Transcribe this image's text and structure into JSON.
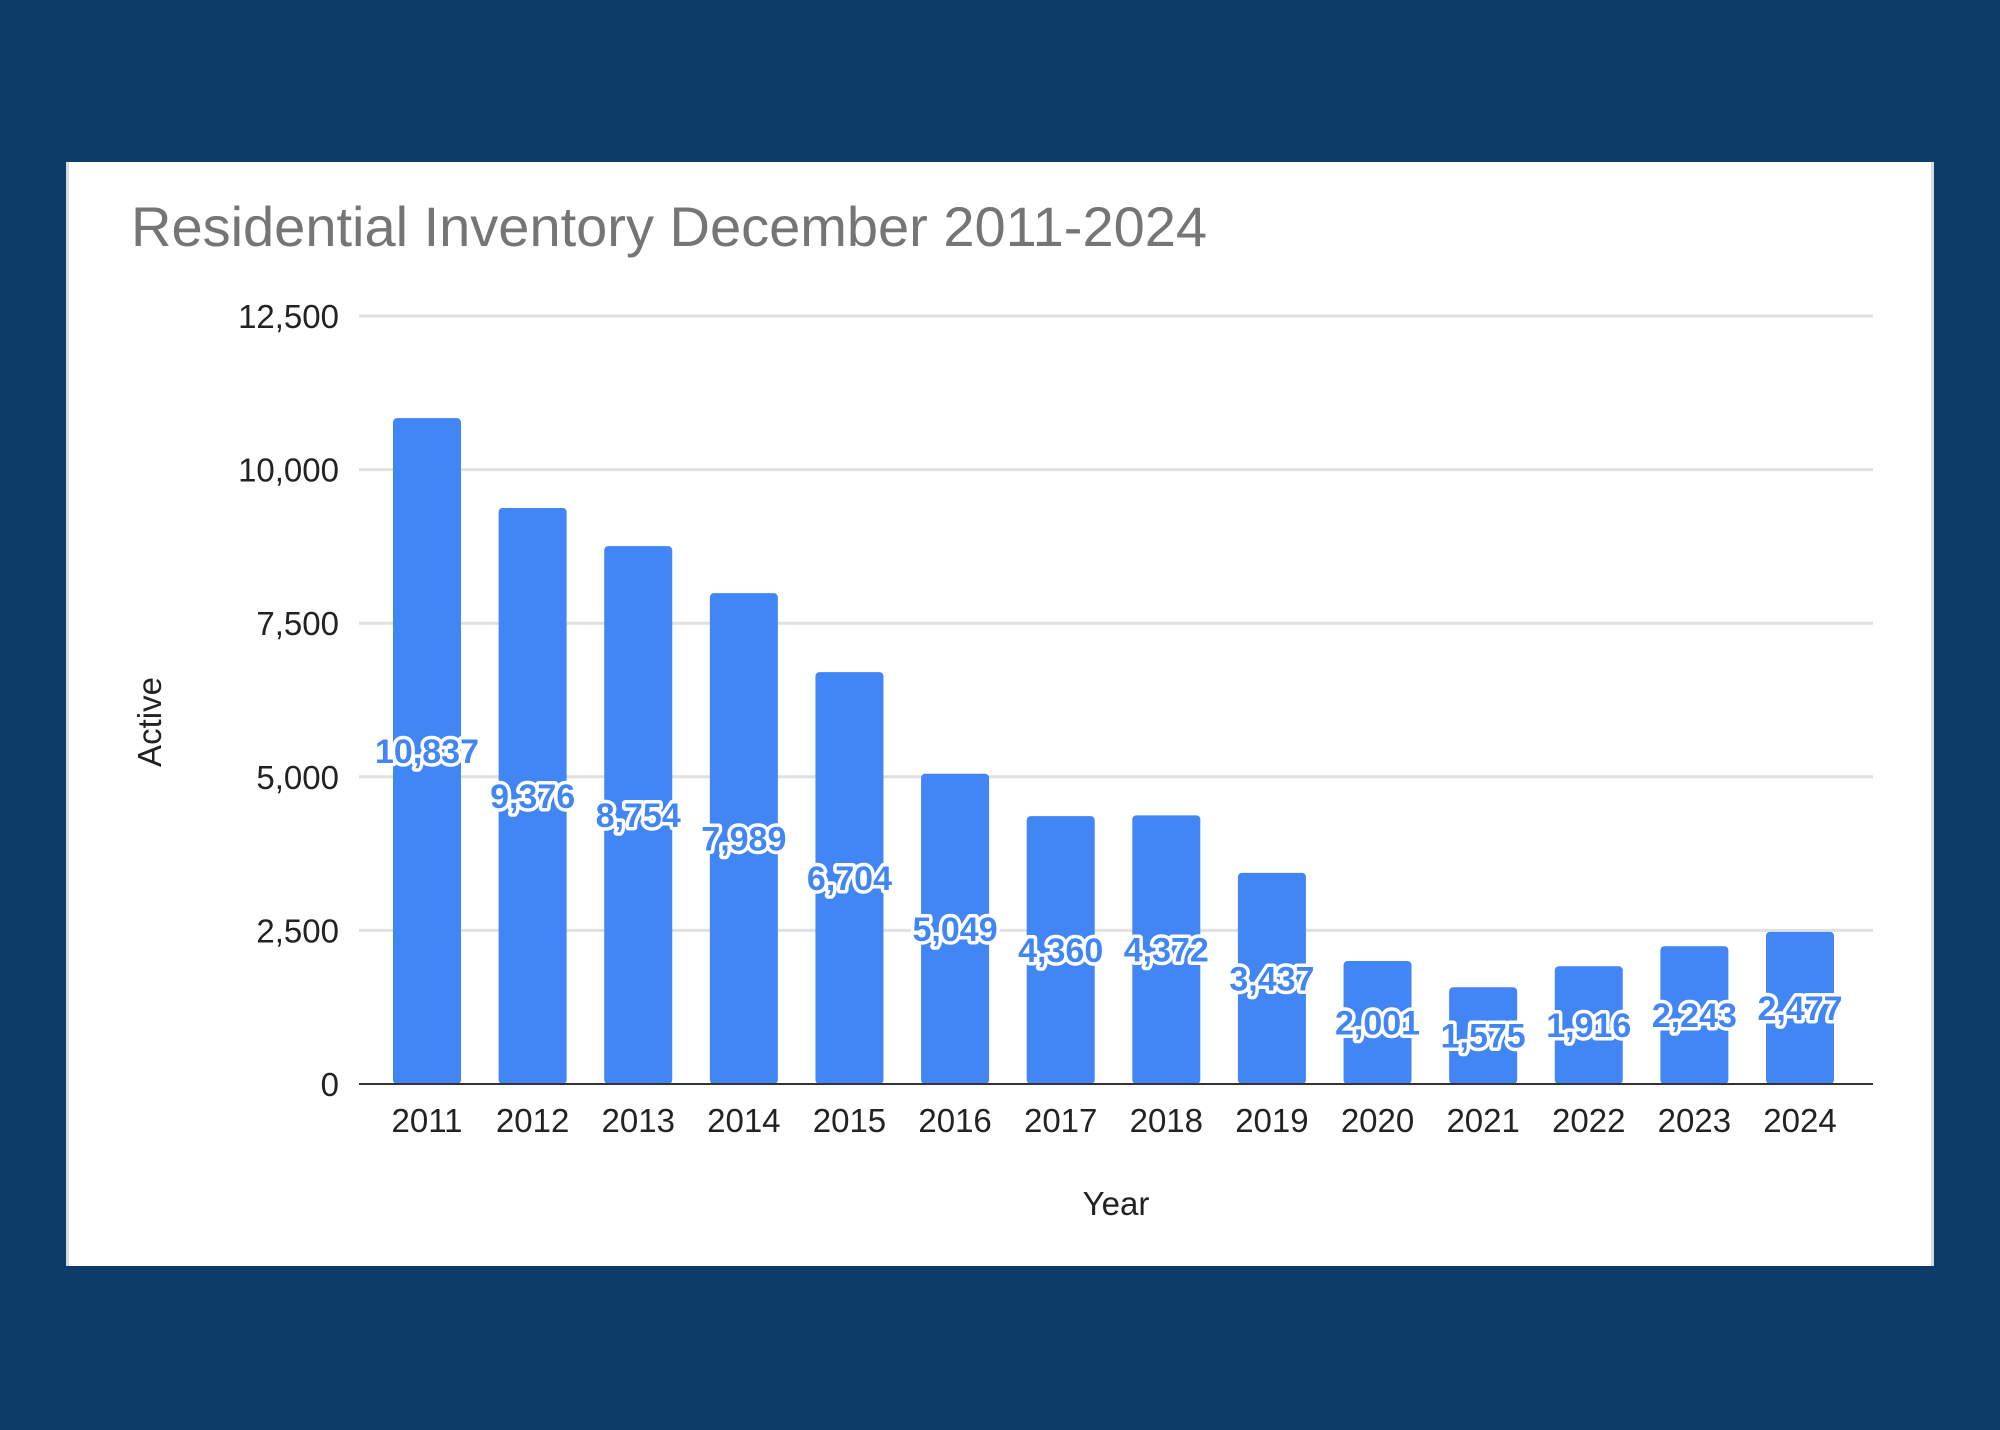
{
  "colors": {
    "page_background": "#0d3c69",
    "card_background": "#ffffff",
    "bar": "#4285f4",
    "gridline": "#e0e0e0",
    "baseline": "#333333",
    "title": "#757575"
  },
  "chart_data": {
    "type": "bar",
    "title": "Residential Inventory December 2011-2024",
    "xlabel": "Year",
    "ylabel": "Active",
    "categories": [
      "2011",
      "2012",
      "2013",
      "2014",
      "2015",
      "2016",
      "2017",
      "2018",
      "2019",
      "2020",
      "2021",
      "2022",
      "2023",
      "2024"
    ],
    "series": [
      {
        "name": "Active",
        "values": [
          10837,
          9376,
          8754,
          7989,
          6704,
          5049,
          4360,
          4372,
          3437,
          2001,
          1575,
          1916,
          2243,
          2477
        ],
        "labels": [
          "10,837",
          "9,376",
          "8,754",
          "7,989",
          "6,704",
          "5,049",
          "4,360",
          "4,372",
          "3,437",
          "2,001",
          "1,575",
          "1,916",
          "2,243",
          "2,477"
        ]
      }
    ],
    "ylim": [
      0,
      12500
    ],
    "yticks": [
      0,
      2500,
      5000,
      7500,
      10000,
      12500
    ],
    "ytick_labels": [
      "0",
      "2,500",
      "5,000",
      "7,500",
      "10,000",
      "12,500"
    ],
    "grid": true,
    "legend": "none",
    "data_labels": "inside-bar"
  }
}
